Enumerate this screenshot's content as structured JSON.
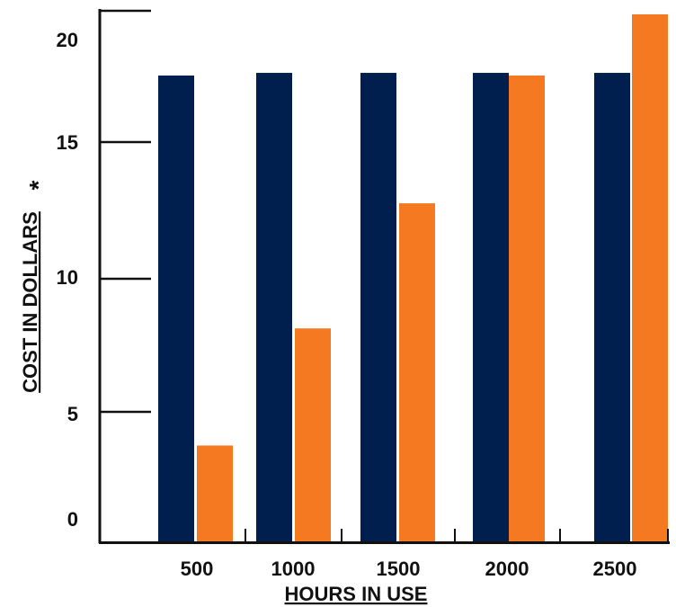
{
  "chart_data": {
    "type": "bar",
    "title": "",
    "xlabel": "HOURS IN USE",
    "ylabel": "COST IN DOLLARS",
    "ylabel_suffix": "*",
    "categories": [
      "500",
      "1000",
      "1500",
      "2000",
      "2500"
    ],
    "series": [
      {
        "color": "#001f4e",
        "values": [
          17.5,
          17.6,
          17.6,
          17.6,
          17.6
        ]
      },
      {
        "color": "#f47920",
        "values": [
          3.6,
          8.0,
          12.7,
          17.5,
          19.8
        ]
      }
    ],
    "yticks": [
      "0",
      "5",
      "10",
      "15",
      "20"
    ],
    "ylim": [
      0,
      20
    ],
    "grid": false,
    "legend": "none"
  }
}
